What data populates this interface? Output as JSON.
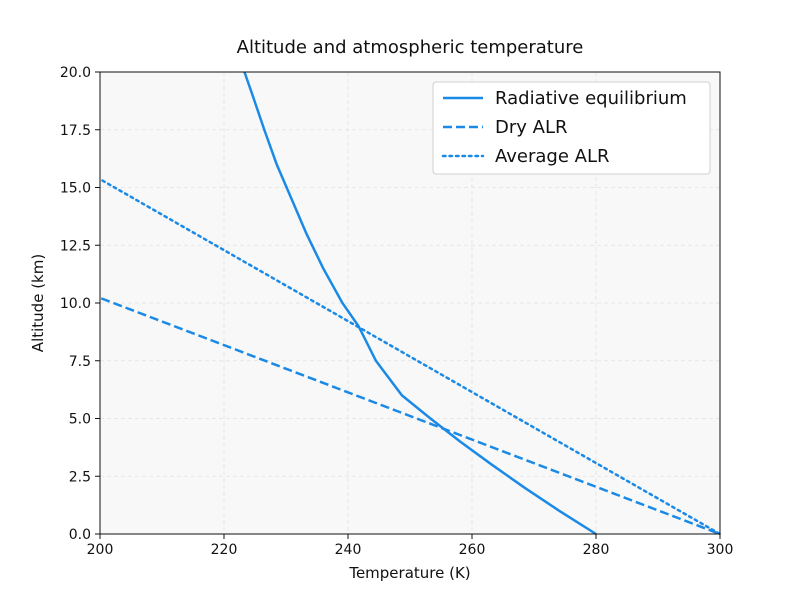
{
  "chart_data": {
    "type": "line",
    "title": "Altitude and atmospheric temperature",
    "xlabel": "Temperature (K)",
    "ylabel": "Altitude (km)",
    "xlim": [
      200,
      300
    ],
    "ylim": [
      0,
      20
    ],
    "xticks": [
      200,
      220,
      240,
      260,
      280,
      300
    ],
    "yticks": [
      0.0,
      2.5,
      5.0,
      7.5,
      10.0,
      12.5,
      15.0,
      17.5,
      20.0
    ],
    "xtick_labels": [
      "200",
      "220",
      "240",
      "260",
      "280",
      "300"
    ],
    "ytick_labels": [
      "0.0",
      "2.5",
      "5.0",
      "7.5",
      "10.0",
      "12.5",
      "15.0",
      "17.5",
      "20.0"
    ],
    "grid": true,
    "legend_position": "top-right",
    "color": "#1a8ae6",
    "series": [
      {
        "name": "Radiative equilibrium",
        "style": "solid",
        "points": [
          [
            280.0,
            0
          ],
          [
            274.1,
            1
          ],
          [
            268.5,
            2
          ],
          [
            263.2,
            3
          ],
          [
            258.1,
            4
          ],
          [
            253.3,
            5
          ],
          [
            248.7,
            6
          ],
          [
            244.5,
            7.5
          ],
          [
            241.7,
            9
          ],
          [
            239.1,
            10
          ],
          [
            236.0,
            11.5
          ],
          [
            233.3,
            13
          ],
          [
            230.9,
            14.5
          ],
          [
            228.5,
            16
          ],
          [
            226.5,
            17.5
          ],
          [
            224.6,
            19
          ],
          [
            223.3,
            20
          ]
        ]
      },
      {
        "name": "Dry ALR",
        "style": "dashed",
        "points": [
          [
            200.2,
            10.2
          ],
          [
            300.0,
            0.0
          ]
        ]
      },
      {
        "name": "Average ALR",
        "style": "dotted",
        "points": [
          [
            200.4,
            15.3
          ],
          [
            300.0,
            0.0
          ]
        ]
      }
    ]
  }
}
